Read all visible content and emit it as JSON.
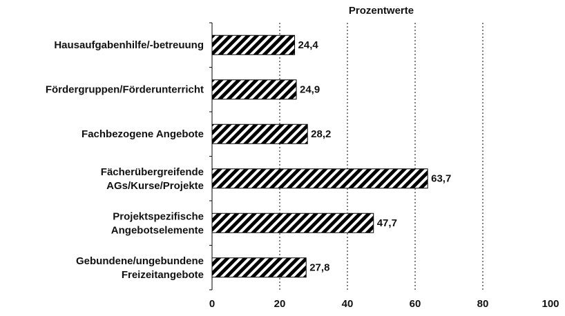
{
  "chart_data": {
    "type": "bar",
    "orientation": "horizontal",
    "title": "Prozentwerte",
    "categories": [
      "Hausaufgabenhilfe/-betreuung",
      "Fördergruppen/Förderunterricht",
      "Fachbezogene Angebote",
      "Fächerübergreifende\nAGs/Kurse/Projekte",
      "Projektspezifische\nAngebotselemente",
      "Gebundene/ungebundene\nFreizeitangebote"
    ],
    "values": [
      24.4,
      24.9,
      28.2,
      63.7,
      47.7,
      27.8
    ],
    "value_labels": [
      "24,4",
      "24,9",
      "28,2",
      "63,7",
      "47,7",
      "27,8"
    ],
    "color": "#000000",
    "xlim": [
      0,
      100
    ],
    "xticks": [
      0,
      20,
      40,
      60,
      80,
      100
    ],
    "grid": true
  }
}
